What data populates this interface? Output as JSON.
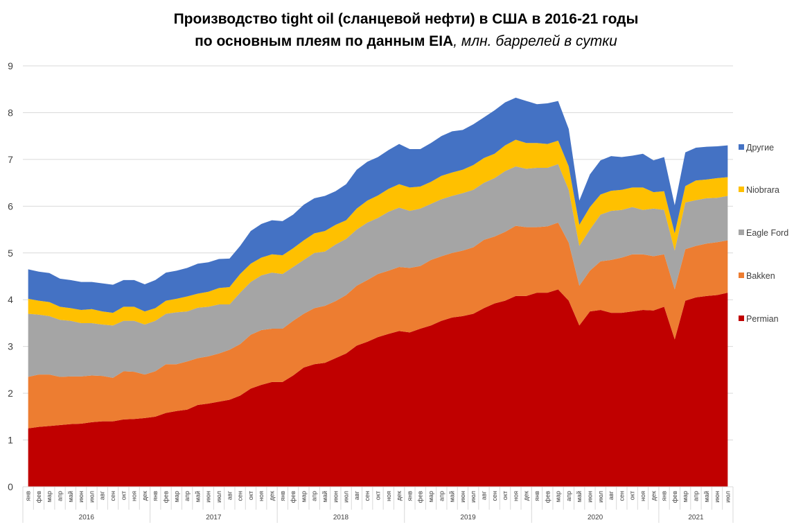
{
  "chart_data": {
    "type": "area",
    "stacked": true,
    "title_line1": "Производство tight oil (сланцевой нефти) в США в 2016-21 годы",
    "title_line2": "по основным плеям по данным EIA",
    "title_suffix": ", млн. баррелей в сутки",
    "ylim": [
      0,
      9
    ],
    "yticks": [
      "0",
      "1",
      "2",
      "3",
      "4",
      "5",
      "6",
      "7",
      "8",
      "9"
    ],
    "grid": true,
    "legend_position": "right",
    "months": [
      "янв",
      "фев",
      "мар",
      "апр",
      "май",
      "июн",
      "июл",
      "авг",
      "сен",
      "окт",
      "ноя",
      "дек"
    ],
    "years": [
      "2016",
      "2017",
      "2018",
      "2019",
      "2020",
      "2021"
    ],
    "last_year_months": 7,
    "series": [
      {
        "name": "Permian",
        "color": "#C00000",
        "values": [
          1.25,
          1.28,
          1.3,
          1.32,
          1.34,
          1.35,
          1.38,
          1.4,
          1.4,
          1.44,
          1.45,
          1.47,
          1.5,
          1.58,
          1.62,
          1.65,
          1.75,
          1.78,
          1.82,
          1.86,
          1.95,
          2.1,
          2.18,
          2.24,
          2.24,
          2.38,
          2.55,
          2.62,
          2.65,
          2.75,
          2.85,
          3.02,
          3.1,
          3.2,
          3.27,
          3.33,
          3.3,
          3.38,
          3.45,
          3.55,
          3.62,
          3.65,
          3.7,
          3.82,
          3.92,
          3.98,
          4.08,
          4.08,
          4.15,
          4.15,
          4.22,
          3.98,
          3.45,
          3.75,
          3.78,
          3.72,
          3.72,
          3.75,
          3.78,
          3.77,
          3.85,
          3.15,
          3.98,
          4.05,
          4.08,
          4.1,
          4.15
        ]
      },
      {
        "name": "Bakken",
        "color": "#ED7D31",
        "values": [
          1.1,
          1.12,
          1.1,
          1.03,
          1.02,
          1.01,
          1.0,
          0.97,
          0.93,
          1.03,
          1.01,
          0.93,
          0.97,
          1.04,
          1.0,
          1.03,
          1.0,
          1.01,
          1.03,
          1.07,
          1.1,
          1.15,
          1.17,
          1.14,
          1.14,
          1.17,
          1.15,
          1.2,
          1.22,
          1.22,
          1.25,
          1.28,
          1.32,
          1.35,
          1.35,
          1.37,
          1.38,
          1.34,
          1.4,
          1.38,
          1.38,
          1.4,
          1.42,
          1.46,
          1.43,
          1.47,
          1.5,
          1.47,
          1.4,
          1.42,
          1.43,
          1.24,
          0.85,
          0.87,
          1.04,
          1.13,
          1.18,
          1.22,
          1.19,
          1.16,
          1.12,
          1.07,
          1.1,
          1.1,
          1.12,
          1.13,
          1.12
        ]
      },
      {
        "name": "Eagle Ford",
        "color": "#A5A5A5",
        "values": [
          1.35,
          1.28,
          1.25,
          1.22,
          1.19,
          1.14,
          1.12,
          1.1,
          1.12,
          1.08,
          1.09,
          1.07,
          1.08,
          1.08,
          1.11,
          1.07,
          1.08,
          1.06,
          1.05,
          0.97,
          1.1,
          1.13,
          1.17,
          1.2,
          1.17,
          1.15,
          1.15,
          1.18,
          1.16,
          1.21,
          1.2,
          1.2,
          1.23,
          1.2,
          1.26,
          1.27,
          1.22,
          1.23,
          1.2,
          1.22,
          1.22,
          1.23,
          1.23,
          1.22,
          1.25,
          1.3,
          1.27,
          1.25,
          1.27,
          1.25,
          1.25,
          1.13,
          0.85,
          0.88,
          1.0,
          1.05,
          1.02,
          1.01,
          0.95,
          1.02,
          0.95,
          0.83,
          1.0,
          0.98,
          0.97,
          0.95,
          0.95
        ]
      },
      {
        "name": "Niobrara",
        "color": "#FFC000",
        "values": [
          0.32,
          0.3,
          0.3,
          0.28,
          0.27,
          0.28,
          0.3,
          0.28,
          0.27,
          0.3,
          0.3,
          0.28,
          0.27,
          0.28,
          0.29,
          0.32,
          0.3,
          0.32,
          0.35,
          0.37,
          0.4,
          0.39,
          0.38,
          0.39,
          0.4,
          0.4,
          0.42,
          0.42,
          0.44,
          0.42,
          0.4,
          0.45,
          0.47,
          0.48,
          0.49,
          0.5,
          0.5,
          0.47,
          0.47,
          0.5,
          0.5,
          0.5,
          0.53,
          0.53,
          0.52,
          0.55,
          0.57,
          0.55,
          0.53,
          0.51,
          0.5,
          0.5,
          0.45,
          0.48,
          0.43,
          0.43,
          0.43,
          0.42,
          0.48,
          0.35,
          0.4,
          0.37,
          0.35,
          0.42,
          0.4,
          0.42,
          0.4
        ]
      },
      {
        "name": "Другие",
        "color": "#4472C4",
        "values": [
          0.63,
          0.62,
          0.62,
          0.6,
          0.6,
          0.6,
          0.58,
          0.6,
          0.6,
          0.57,
          0.57,
          0.58,
          0.6,
          0.6,
          0.6,
          0.61,
          0.64,
          0.63,
          0.62,
          0.61,
          0.6,
          0.7,
          0.72,
          0.73,
          0.73,
          0.72,
          0.76,
          0.75,
          0.75,
          0.72,
          0.77,
          0.83,
          0.83,
          0.82,
          0.83,
          0.86,
          0.82,
          0.8,
          0.83,
          0.85,
          0.88,
          0.85,
          0.87,
          0.87,
          0.93,
          0.92,
          0.9,
          0.9,
          0.83,
          0.87,
          0.85,
          0.8,
          0.52,
          0.7,
          0.73,
          0.74,
          0.7,
          0.68,
          0.72,
          0.68,
          0.73,
          0.6,
          0.72,
          0.7,
          0.7,
          0.68,
          0.68
        ]
      }
    ]
  }
}
